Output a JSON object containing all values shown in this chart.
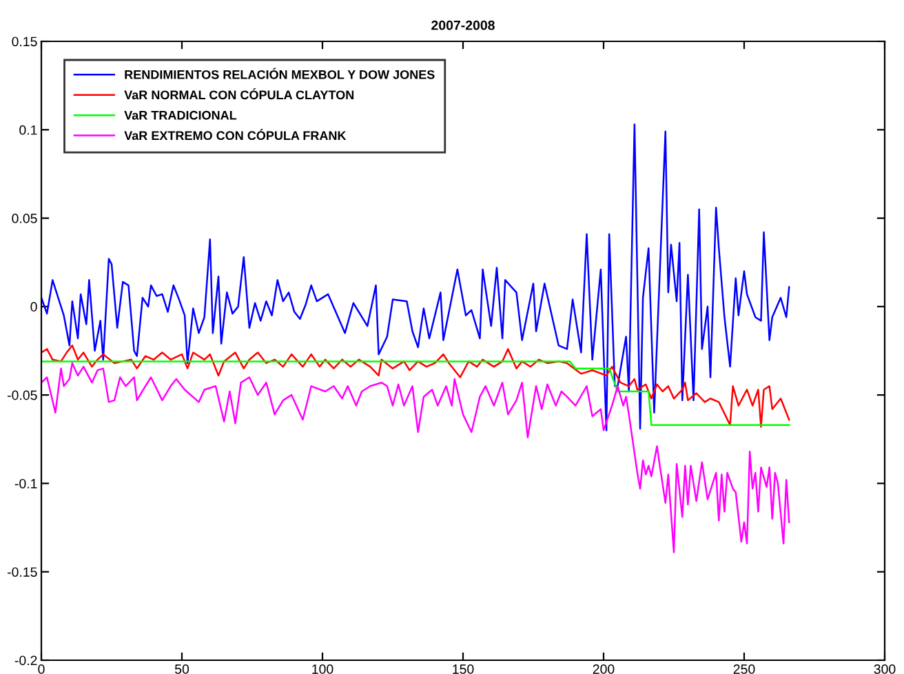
{
  "chart_data": {
    "type": "line",
    "title": "2007-2008",
    "xlim": [
      0,
      300
    ],
    "xticks": [
      0,
      50,
      100,
      150,
      200,
      250,
      300
    ],
    "ylim": [
      -0.2,
      0.15
    ],
    "yticks": [
      -0.2,
      -0.15,
      -0.1,
      -0.05,
      0,
      0.05,
      0.1,
      0.15
    ],
    "grid": false,
    "legend": "top left",
    "marker": "none",
    "line_style": "solid",
    "series": [
      {
        "name": "RENDIMIENTOS RELACIÓN MEXBOL Y DOW JONES",
        "color": "#0000ff",
        "x": [
          0,
          2,
          4,
          6,
          8,
          10,
          11,
          13,
          14,
          16,
          17,
          19,
          21,
          22,
          24,
          25,
          27,
          29,
          31,
          33,
          34,
          36,
          38,
          39,
          41,
          43,
          45,
          47,
          49,
          51,
          52,
          54,
          56,
          58,
          60,
          61,
          63,
          64,
          66,
          68,
          70,
          72,
          74,
          76,
          78,
          80,
          82,
          84,
          86,
          88,
          90,
          92,
          94,
          96,
          98,
          102,
          108,
          111,
          116,
          119,
          120,
          123,
          125,
          130,
          132,
          134,
          136,
          138,
          142,
          143,
          148,
          151,
          153,
          156,
          157,
          160,
          162,
          164,
          165,
          169,
          171,
          175,
          176,
          179,
          184,
          187,
          189,
          192,
          194,
          196,
          199,
          201,
          202,
          204,
          205,
          208,
          209,
          211,
          213,
          214,
          216,
          218,
          222,
          223,
          224,
          226,
          227,
          228,
          230,
          232,
          234,
          235,
          237,
          238,
          240,
          241,
          243,
          245,
          247,
          248,
          250,
          251,
          254,
          256,
          257,
          259,
          260,
          263,
          265,
          266
        ],
        "values": [
          0.005,
          -0.004,
          0.015,
          0.005,
          -0.005,
          -0.022,
          0.003,
          -0.018,
          0.007,
          -0.01,
          0.015,
          -0.025,
          -0.008,
          -0.03,
          0.027,
          0.024,
          -0.012,
          0.014,
          0.012,
          -0.025,
          -0.028,
          0.005,
          0.0,
          0.012,
          0.006,
          0.007,
          -0.003,
          0.012,
          0.004,
          -0.005,
          -0.032,
          -0.001,
          -0.015,
          -0.006,
          0.038,
          -0.015,
          0.017,
          -0.021,
          0.008,
          -0.004,
          0.0,
          0.028,
          -0.012,
          0.002,
          -0.008,
          0.003,
          -0.005,
          0.015,
          0.003,
          0.008,
          -0.003,
          -0.007,
          0.001,
          0.012,
          0.003,
          0.007,
          -0.015,
          0.002,
          -0.011,
          0.012,
          -0.027,
          -0.017,
          0.004,
          0.003,
          -0.014,
          -0.023,
          -0.001,
          -0.018,
          0.008,
          -0.019,
          0.021,
          -0.005,
          -0.002,
          -0.018,
          0.021,
          -0.011,
          0.022,
          -0.018,
          0.015,
          0.008,
          -0.019,
          0.013,
          -0.014,
          0.013,
          -0.022,
          -0.024,
          0.004,
          -0.026,
          0.041,
          -0.03,
          0.021,
          -0.07,
          0.041,
          -0.045,
          -0.045,
          -0.017,
          -0.048,
          0.103,
          -0.069,
          0.005,
          0.033,
          -0.06,
          0.099,
          0.008,
          0.035,
          0.003,
          0.036,
          -0.053,
          0.018,
          -0.053,
          0.055,
          -0.024,
          0.0,
          -0.04,
          0.056,
          0.033,
          -0.006,
          -0.034,
          0.016,
          -0.005,
          0.02,
          0.007,
          -0.006,
          -0.008,
          0.042,
          -0.019,
          -0.006,
          0.005,
          -0.006,
          0.011
        ]
      },
      {
        "name": "VaR NORMAL CON CÓPULA CLAYTON",
        "color": "#ff0000",
        "x": [
          0,
          2,
          4,
          7,
          9,
          11,
          13,
          15,
          18,
          20,
          22,
          26,
          29,
          32,
          34,
          37,
          40,
          43,
          46,
          50,
          52,
          54,
          58,
          60,
          63,
          65,
          69,
          72,
          74,
          77,
          80,
          83,
          86,
          89,
          93,
          96,
          99,
          101,
          104,
          107,
          110,
          113,
          117,
          120,
          121,
          125,
          129,
          131,
          134,
          137,
          140,
          143,
          145,
          149,
          152,
          155,
          157,
          161,
          164,
          166,
          169,
          171,
          174,
          177,
          180,
          184,
          187,
          192,
          196,
          201,
          203,
          206,
          209,
          211,
          212,
          215,
          217,
          219,
          221,
          223,
          225,
          228,
          229,
          230,
          233,
          236,
          238,
          241,
          245,
          246,
          248,
          251,
          253,
          255,
          256,
          257,
          259,
          260,
          263,
          266
        ],
        "values": [
          -0.026,
          -0.024,
          -0.03,
          -0.031,
          -0.026,
          -0.022,
          -0.03,
          -0.026,
          -0.034,
          -0.03,
          -0.027,
          -0.032,
          -0.031,
          -0.03,
          -0.035,
          -0.028,
          -0.03,
          -0.026,
          -0.03,
          -0.027,
          -0.035,
          -0.026,
          -0.03,
          -0.027,
          -0.039,
          -0.031,
          -0.026,
          -0.035,
          -0.03,
          -0.026,
          -0.032,
          -0.03,
          -0.034,
          -0.027,
          -0.034,
          -0.027,
          -0.034,
          -0.03,
          -0.035,
          -0.03,
          -0.034,
          -0.03,
          -0.034,
          -0.039,
          -0.03,
          -0.035,
          -0.031,
          -0.036,
          -0.031,
          -0.034,
          -0.032,
          -0.027,
          -0.032,
          -0.04,
          -0.031,
          -0.034,
          -0.03,
          -0.034,
          -0.031,
          -0.024,
          -0.035,
          -0.031,
          -0.034,
          -0.03,
          -0.032,
          -0.031,
          -0.032,
          -0.038,
          -0.036,
          -0.039,
          -0.034,
          -0.043,
          -0.045,
          -0.041,
          -0.047,
          -0.044,
          -0.052,
          -0.044,
          -0.048,
          -0.045,
          -0.052,
          -0.047,
          -0.043,
          -0.053,
          -0.049,
          -0.054,
          -0.052,
          -0.054,
          -0.067,
          -0.045,
          -0.056,
          -0.047,
          -0.056,
          -0.047,
          -0.068,
          -0.047,
          -0.045,
          -0.058,
          -0.052,
          -0.064
        ]
      },
      {
        "name": "VaR TRADICIONAL",
        "color": "#00ff00",
        "x": [
          0,
          188,
          190,
          202,
          205,
          216,
          217,
          266
        ],
        "values": [
          -0.031,
          -0.031,
          -0.035,
          -0.035,
          -0.048,
          -0.048,
          -0.067,
          -0.067
        ]
      },
      {
        "name": "VaR EXTREMO CON CÓPULA FRANK",
        "color": "#ff00ff",
        "x": [
          0,
          2,
          5,
          7,
          8,
          10,
          11,
          13,
          15,
          18,
          20,
          22,
          24,
          26,
          28,
          30,
          33,
          34,
          37,
          39,
          43,
          46,
          48,
          51,
          56,
          58,
          62,
          65,
          67,
          69,
          71,
          74,
          77,
          80,
          83,
          86,
          89,
          93,
          96,
          101,
          104,
          107,
          109,
          112,
          114,
          117,
          121,
          123,
          125,
          127,
          129,
          132,
          134,
          136,
          139,
          141,
          144,
          146,
          147,
          150,
          153,
          156,
          158,
          161,
          164,
          166,
          169,
          171,
          173,
          176,
          178,
          180,
          183,
          185,
          187,
          190,
          194,
          196,
          199,
          200,
          203,
          205,
          207,
          208,
          209,
          212,
          213,
          214,
          215,
          216,
          217,
          219,
          220,
          222,
          223,
          225,
          226,
          228,
          229,
          230,
          231,
          233,
          235,
          237,
          240,
          241,
          242,
          243,
          244,
          246,
          247,
          249,
          250,
          251,
          252,
          253,
          254,
          255,
          256,
          258,
          259,
          260,
          261,
          262,
          264,
          265,
          266
        ],
        "values": [
          -0.043,
          -0.04,
          -0.06,
          -0.035,
          -0.045,
          -0.041,
          -0.032,
          -0.039,
          -0.034,
          -0.043,
          -0.036,
          -0.035,
          -0.054,
          -0.053,
          -0.04,
          -0.045,
          -0.04,
          -0.053,
          -0.045,
          -0.04,
          -0.053,
          -0.045,
          -0.041,
          -0.047,
          -0.054,
          -0.047,
          -0.045,
          -0.065,
          -0.048,
          -0.066,
          -0.043,
          -0.04,
          -0.05,
          -0.043,
          -0.061,
          -0.053,
          -0.05,
          -0.064,
          -0.045,
          -0.048,
          -0.045,
          -0.052,
          -0.045,
          -0.056,
          -0.048,
          -0.045,
          -0.043,
          -0.045,
          -0.056,
          -0.044,
          -0.056,
          -0.045,
          -0.071,
          -0.051,
          -0.047,
          -0.056,
          -0.045,
          -0.056,
          -0.041,
          -0.061,
          -0.071,
          -0.051,
          -0.045,
          -0.056,
          -0.043,
          -0.061,
          -0.053,
          -0.043,
          -0.074,
          -0.045,
          -0.058,
          -0.044,
          -0.056,
          -0.048,
          -0.051,
          -0.056,
          -0.045,
          -0.062,
          -0.058,
          -0.07,
          -0.056,
          -0.045,
          -0.056,
          -0.051,
          -0.061,
          -0.094,
          -0.103,
          -0.087,
          -0.095,
          -0.09,
          -0.096,
          -0.079,
          -0.09,
          -0.111,
          -0.095,
          -0.139,
          -0.089,
          -0.119,
          -0.09,
          -0.112,
          -0.09,
          -0.11,
          -0.088,
          -0.109,
          -0.094,
          -0.121,
          -0.095,
          -0.116,
          -0.094,
          -0.103,
          -0.105,
          -0.133,
          -0.122,
          -0.134,
          -0.082,
          -0.103,
          -0.094,
          -0.116,
          -0.091,
          -0.102,
          -0.091,
          -0.12,
          -0.094,
          -0.1,
          -0.134,
          -0.098,
          -0.122
        ]
      }
    ]
  }
}
